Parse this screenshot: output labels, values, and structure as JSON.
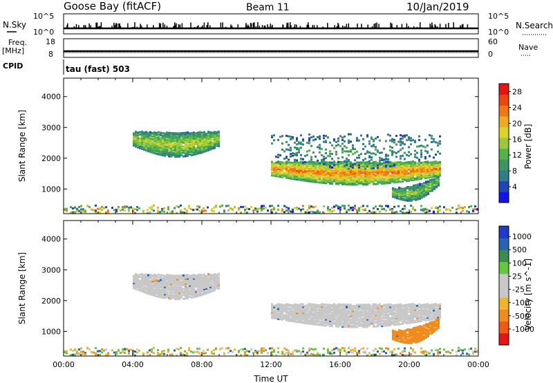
{
  "header": {
    "station": "Goose Bay (fitACF)",
    "beam": "Beam 11",
    "date": "10/Jan/2019"
  },
  "summary": {
    "nsky_label": "N.Sky",
    "nsky_ticks": [
      "10^5",
      "10^0"
    ],
    "nsearch_label": "N.Search",
    "nsearch_ticks": [
      "10^5",
      "10^0"
    ],
    "freq_label": "Freq.",
    "freq_unit": "[MHz]",
    "freq_ticks": [
      "18",
      "8"
    ],
    "nave_label": "Nave",
    "nave_ticks": [
      "60",
      "0"
    ],
    "cpid_label": "CPID",
    "cpid_value": "tau (fast) 503"
  },
  "chart_data": [
    {
      "type": "heatmap",
      "panel": "power",
      "ylabel": "Slant Range [km]",
      "ylim": [
        200,
        4600
      ],
      "yticks": [
        "1000",
        "2000",
        "3000",
        "4000"
      ],
      "xlim_hours": [
        0,
        24
      ],
      "colorbar": {
        "label": "Power [dB]",
        "ticks": [
          "4",
          "8",
          "12",
          "16",
          "20",
          "24",
          "28"
        ],
        "range": [
          0,
          30
        ],
        "colors": [
          "#1414e6",
          "#1e46b4",
          "#2d7d8c",
          "#3c9664",
          "#50b446",
          "#9bc83c",
          "#dcd228",
          "#f0aa1e",
          "#f07814",
          "#eb460f",
          "#e61414"
        ]
      },
      "regions": [
        {
          "t0": 4.0,
          "t1": 9.0,
          "r0": 2150,
          "r1": 3200,
          "level": 14
        },
        {
          "t0": 12.0,
          "t1": 21.8,
          "r0": 1200,
          "r1": 2200,
          "level": 20
        },
        {
          "t0": 19.0,
          "t1": 21.7,
          "r0": 600,
          "r1": 1250,
          "level": 12
        },
        {
          "t0": 12.0,
          "t1": 21.8,
          "r0": 1700,
          "r1": 3200,
          "level": 8
        }
      ]
    },
    {
      "type": "heatmap",
      "panel": "velocity",
      "ylabel": "Slant Range [km]",
      "ylim": [
        200,
        4600
      ],
      "yticks": [
        "1000",
        "2000",
        "3000",
        "4000"
      ],
      "xlim_hours": [
        0,
        24
      ],
      "xticks": [
        "00:00",
        "04:00",
        "08:00",
        "12:00",
        "16:00",
        "20:00",
        "00:00"
      ],
      "xlabel": "Time UT",
      "colorbar": {
        "label": "Velocity [m s^-1]",
        "ticks": [
          "1000",
          "500",
          "100",
          "25",
          "-25",
          "-100",
          "-500",
          "-1000"
        ],
        "colors": [
          "#1e3cc8",
          "#2864b4",
          "#3c8c50",
          "#64c83c",
          "#c8c8c8",
          "#c8c8c8",
          "#f0b428",
          "#f08c1e",
          "#f05a14",
          "#e61414"
        ]
      },
      "regions": [
        {
          "t0": 4.0,
          "t1": 9.0,
          "r0": 2150,
          "r1": 3200,
          "velocity": 0
        },
        {
          "t0": 12.0,
          "t1": 21.8,
          "r0": 1200,
          "r1": 2200,
          "velocity": 0
        },
        {
          "t0": 19.0,
          "t1": 21.7,
          "r0": 600,
          "r1": 1250,
          "velocity": -150
        }
      ]
    }
  ]
}
